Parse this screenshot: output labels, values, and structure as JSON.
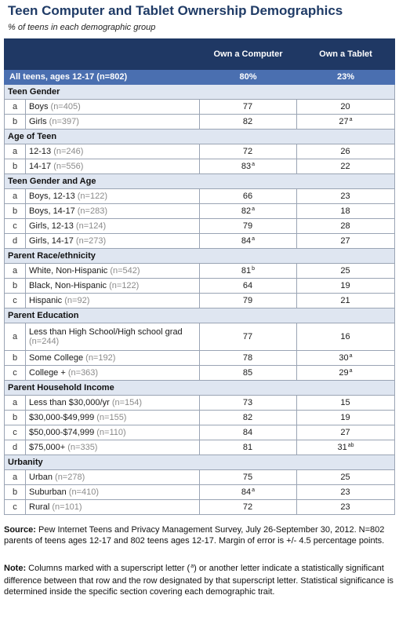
{
  "title": "Teen Computer and Tablet Ownership Demographics",
  "subtitle": "% of teens in each demographic group",
  "columns": [
    "Own a Computer",
    "Own a Tablet"
  ],
  "all_teens": {
    "label": "All teens, ages 12-17 (n=802)",
    "computer": "80%",
    "tablet": "23%"
  },
  "sections": [
    {
      "title": "Teen Gender",
      "rows": [
        {
          "letter": "a",
          "label": "Boys",
          "n": "(n=405)",
          "computer": "77",
          "comp_sup": "",
          "tablet": "20",
          "tab_sup": ""
        },
        {
          "letter": "b",
          "label": "Girls",
          "n": "(n=397)",
          "computer": "82",
          "comp_sup": "",
          "tablet": "27",
          "tab_sup": "a"
        }
      ]
    },
    {
      "title": "Age of Teen",
      "rows": [
        {
          "letter": "a",
          "label": "12-13",
          "n": "(n=246)",
          "computer": "72",
          "comp_sup": "",
          "tablet": "26",
          "tab_sup": ""
        },
        {
          "letter": "b",
          "label": "14-17",
          "n": "(n=556)",
          "computer": "83",
          "comp_sup": "a",
          "tablet": "22",
          "tab_sup": ""
        }
      ]
    },
    {
      "title": "Teen Gender and Age",
      "rows": [
        {
          "letter": "a",
          "label": "Boys, 12-13",
          "n": "(n=122)",
          "computer": "66",
          "comp_sup": "",
          "tablet": "23",
          "tab_sup": ""
        },
        {
          "letter": "b",
          "label": "Boys, 14-17",
          "n": "(n=283)",
          "computer": "82",
          "comp_sup": "a",
          "tablet": "18",
          "tab_sup": ""
        },
        {
          "letter": "c",
          "label": "Girls, 12-13",
          "n": "(n=124)",
          "computer": "79",
          "comp_sup": "",
          "tablet": "28",
          "tab_sup": ""
        },
        {
          "letter": "d",
          "label": "Girls, 14-17",
          "n": "(n=273)",
          "computer": "84",
          "comp_sup": "a",
          "tablet": "27",
          "tab_sup": ""
        }
      ]
    },
    {
      "title": "Parent Race/ethnicity",
      "rows": [
        {
          "letter": "a",
          "label": "White, Non-Hispanic",
          "n": "(n=542)",
          "computer": "81",
          "comp_sup": "b",
          "tablet": "25",
          "tab_sup": ""
        },
        {
          "letter": "b",
          "label": "Black, Non-Hispanic",
          "n": "(n=122)",
          "computer": "64",
          "comp_sup": "",
          "tablet": "19",
          "tab_sup": ""
        },
        {
          "letter": "c",
          "label": "Hispanic",
          "n": "(n=92)",
          "computer": "79",
          "comp_sup": "",
          "tablet": "21",
          "tab_sup": ""
        }
      ]
    },
    {
      "title": "Parent Education",
      "rows": [
        {
          "letter": "a",
          "label": "Less than High School/High school grad",
          "n": "(n=244)",
          "computer": "77",
          "comp_sup": "",
          "tablet": "16",
          "tab_sup": "",
          "tall": true
        },
        {
          "letter": "b",
          "label": "Some College",
          "n": "(n=192)",
          "computer": "78",
          "comp_sup": "",
          "tablet": "30",
          "tab_sup": "a"
        },
        {
          "letter": "c",
          "label": "College +",
          "n": "(n=363)",
          "computer": "85",
          "comp_sup": "",
          "tablet": "29",
          "tab_sup": "a"
        }
      ]
    },
    {
      "title": "Parent Household Income",
      "rows": [
        {
          "letter": "a",
          "label": "Less than $30,000/yr",
          "n": "(n=154)",
          "computer": "73",
          "comp_sup": "",
          "tablet": "15",
          "tab_sup": ""
        },
        {
          "letter": "b",
          "label": "$30,000-$49,999",
          "n": "(n=155)",
          "computer": "82",
          "comp_sup": "",
          "tablet": "19",
          "tab_sup": ""
        },
        {
          "letter": "c",
          "label": "$50,000-$74,999",
          "n": "(n=110)",
          "computer": "84",
          "comp_sup": "",
          "tablet": "27",
          "tab_sup": ""
        },
        {
          "letter": "d",
          "label": "$75,000+",
          "n": "(n=335)",
          "computer": "81",
          "comp_sup": "",
          "tablet": "31",
          "tab_sup": "ab"
        }
      ]
    },
    {
      "title": "Urbanity",
      "rows": [
        {
          "letter": "a",
          "label": "Urban",
          "n": "(n=278)",
          "computer": "75",
          "comp_sup": "",
          "tablet": "25",
          "tab_sup": ""
        },
        {
          "letter": "b",
          "label": "Suburban",
          "n": "(n=410)",
          "computer": "84",
          "comp_sup": "a",
          "tablet": "23",
          "tab_sup": ""
        },
        {
          "letter": "c",
          "label": "Rural",
          "n": "(n=101)",
          "computer": "72",
          "comp_sup": "",
          "tablet": "23",
          "tab_sup": ""
        }
      ]
    }
  ],
  "source_label": "Source:",
  "source_text": "Pew Internet Teens and Privacy Management Survey, July 26-September 30, 2012. N=802 parents of teens ages 12-17 and 802 teens ages 12-17.  Margin of error is +/- 4.5 percentage points.",
  "note_label": "Note:",
  "note_pre": "Columns marked with a superscript letter (",
  "note_sup": "a",
  "note_post": ") or another letter indicate a statistically significant difference between that row and the row designated by that superscript letter. Statistical significance is determined inside the specific section covering each demographic trait."
}
